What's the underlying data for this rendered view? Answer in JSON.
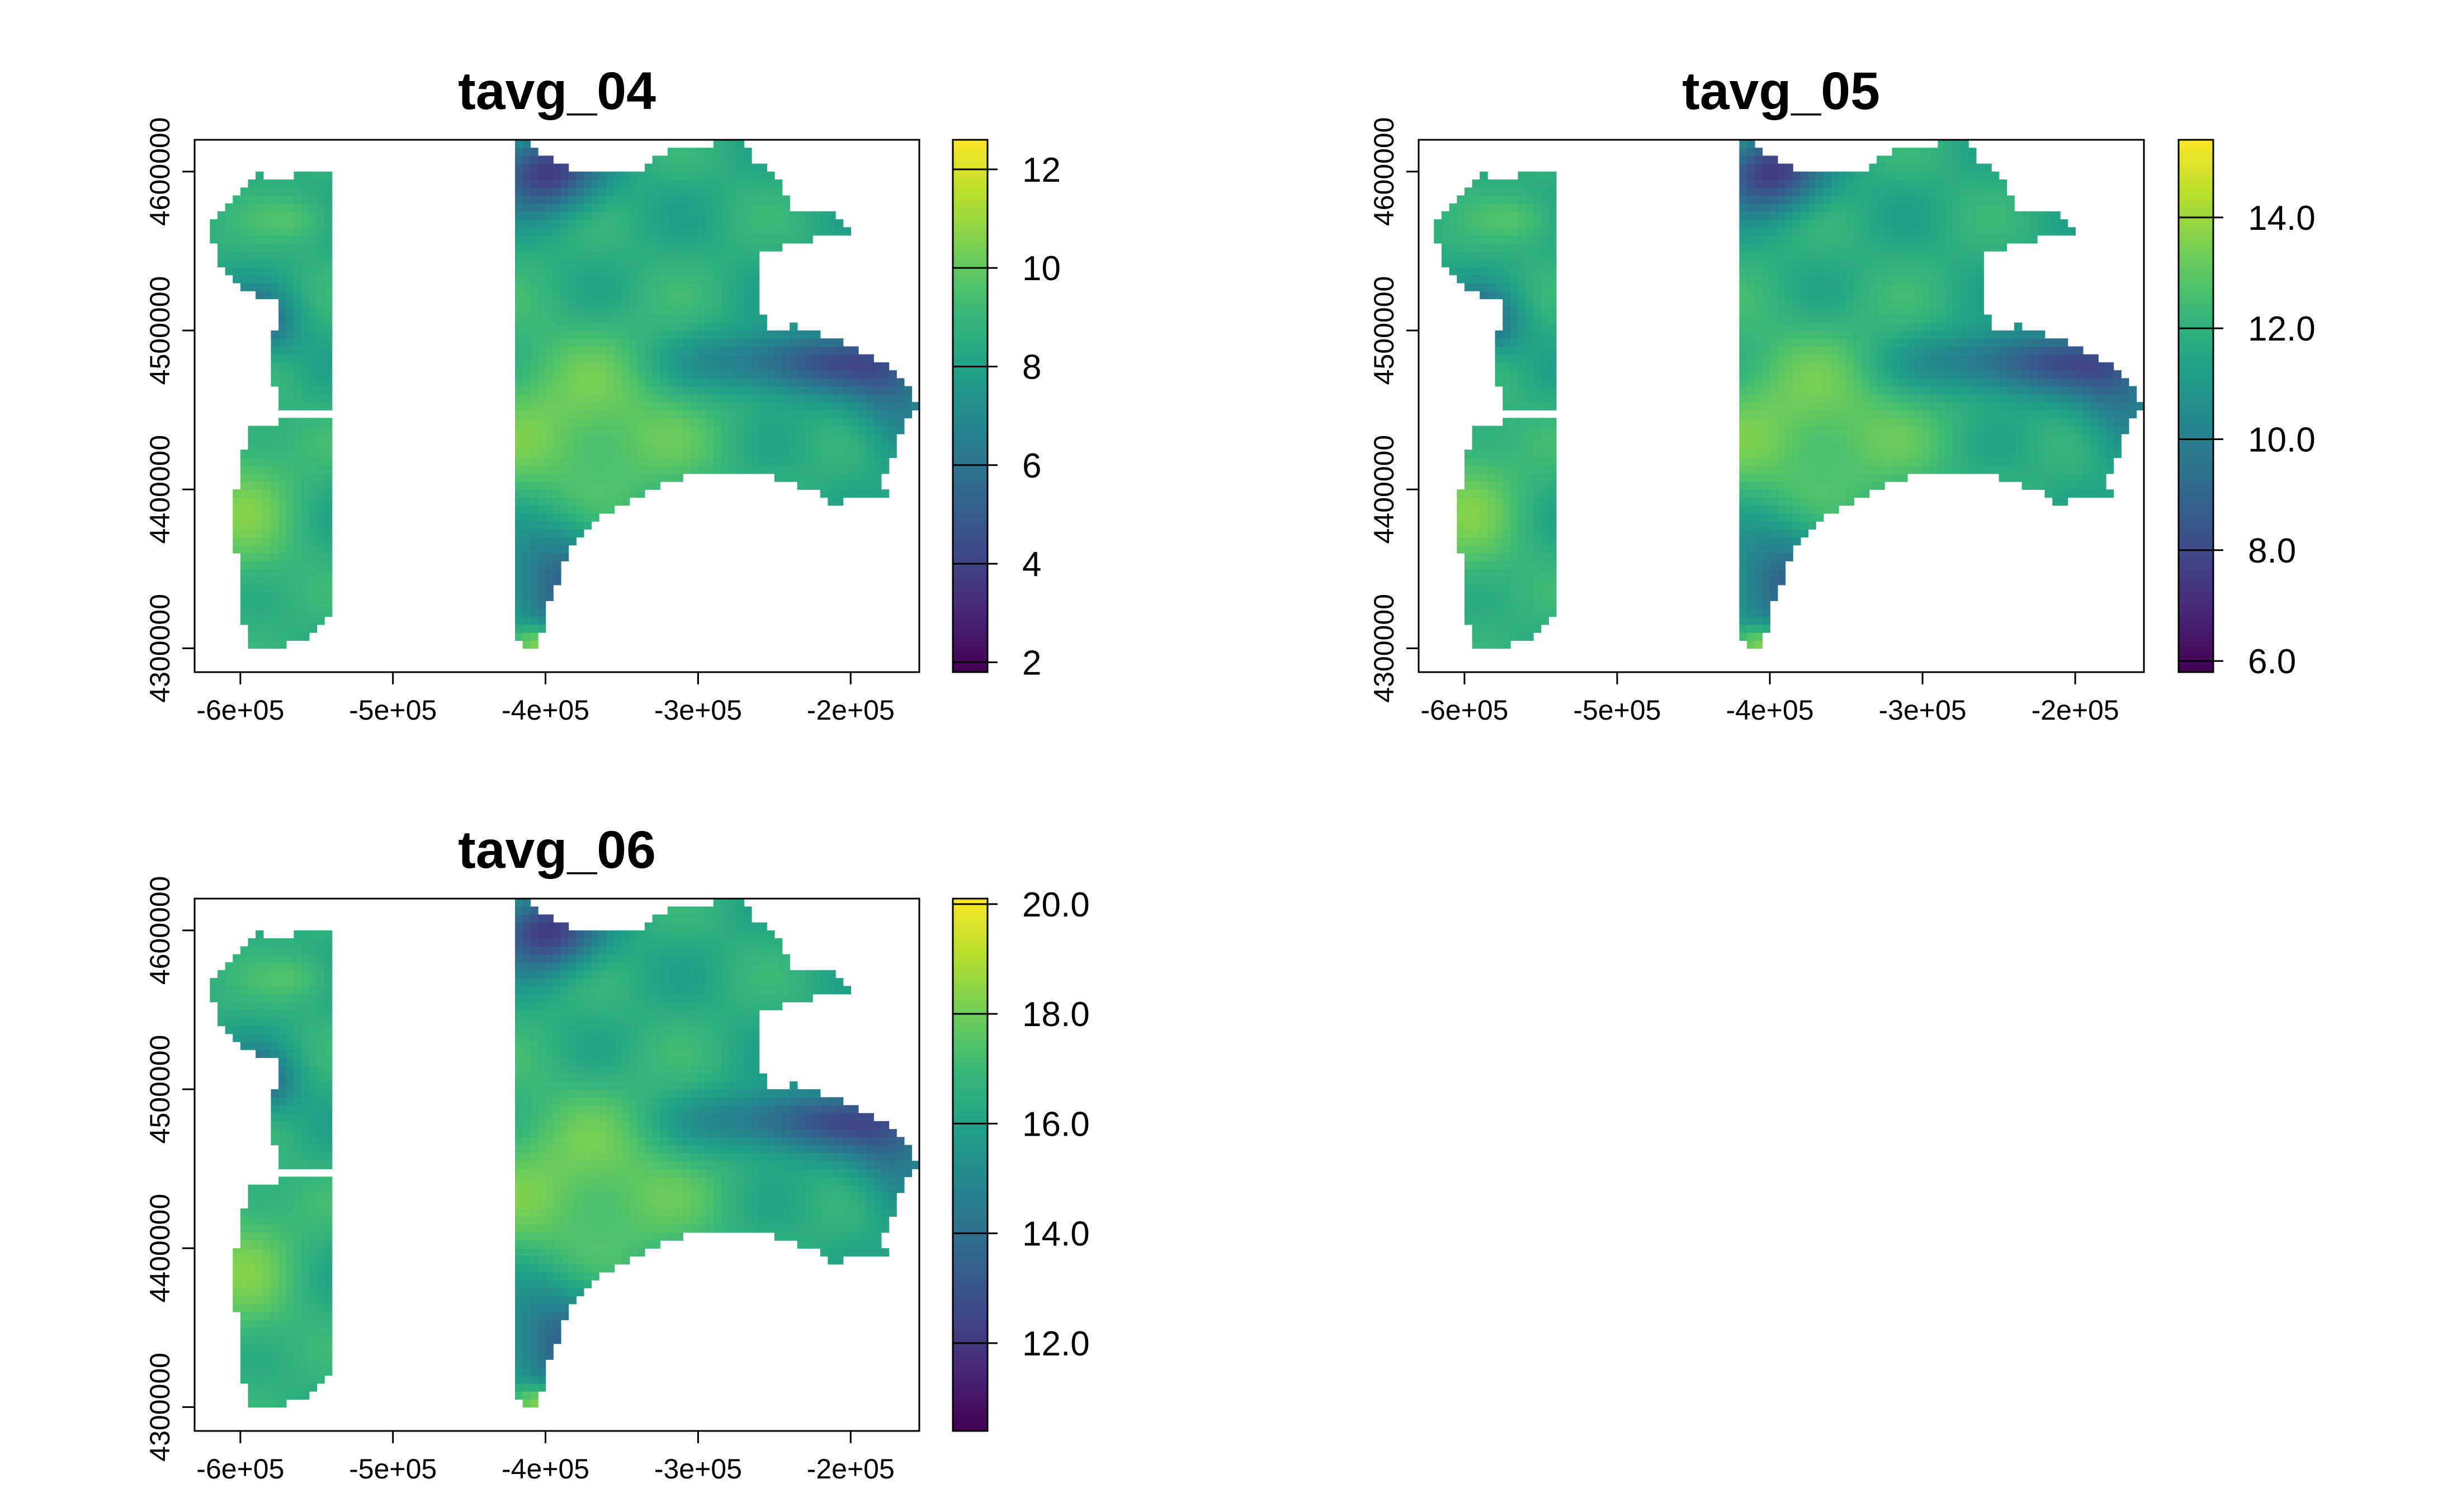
{
  "chart_data": {
    "type": "heatmap",
    "color_scale": "viridis",
    "colors": {
      "viridis_low": "#440154",
      "viridis_mid": "#21918c",
      "viridis_high": "#fde725",
      "axis": "#000000",
      "na": "#ffffff"
    },
    "xlim": [
      -630000,
      -155000
    ],
    "ylim": [
      4285000,
      4620000
    ],
    "x_ticks": [
      -600000,
      -500000,
      -400000,
      -300000,
      -200000
    ],
    "x_tick_labels": [
      "-6e+05",
      "-5e+05",
      "-4e+05",
      "-3e+05",
      "-2e+05"
    ],
    "y_ticks": [
      4300000,
      4400000,
      4500000,
      4600000
    ],
    "y_tick_labels": [
      "4300000",
      "4400000",
      "4500000",
      "4600000"
    ],
    "region_polygons": [
      [
        [
          -590000,
          4600000
        ],
        [
          -570000,
          4593000
        ],
        [
          -565000,
          4600000
        ],
        [
          -540000,
          4602000
        ],
        [
          -540000,
          4520000
        ],
        [
          -590000,
          4522000
        ],
        [
          -615000,
          4540000
        ],
        [
          -620000,
          4570000
        ],
        [
          -600000,
          4585000
        ]
      ],
      [
        [
          -575000,
          4522000
        ],
        [
          -540000,
          4520000
        ],
        [
          -540000,
          4448000
        ],
        [
          -575000,
          4450000
        ],
        [
          -580000,
          4478000
        ]
      ],
      [
        [
          -595000,
          4438000
        ],
        [
          -550000,
          4448000
        ],
        [
          -540000,
          4443000
        ],
        [
          -540000,
          4325000
        ],
        [
          -550000,
          4310000
        ],
        [
          -575000,
          4300000
        ],
        [
          -595000,
          4302000
        ],
        [
          -600000,
          4330000
        ],
        [
          -605000,
          4390000
        ]
      ],
      [
        [
          -420000,
          4622000
        ],
        [
          -380000,
          4600000
        ],
        [
          -340000,
          4600000
        ],
        [
          -320000,
          4613000
        ],
        [
          -270000,
          4620000
        ],
        [
          -262000,
          4605000
        ],
        [
          -250000,
          4600000
        ],
        [
          -240000,
          4577000
        ],
        [
          -210000,
          4573000
        ],
        [
          -200000,
          4562000
        ],
        [
          -240000,
          4555000
        ],
        [
          -258000,
          4548000
        ],
        [
          -260000,
          4525000
        ],
        [
          -255000,
          4500000
        ],
        [
          -235000,
          4503000
        ],
        [
          -210000,
          4495000
        ],
        [
          -190000,
          4485000
        ],
        [
          -175000,
          4477000
        ],
        [
          -160000,
          4465000
        ],
        [
          -155000,
          4450000
        ],
        [
          -165000,
          4440000
        ],
        [
          -170000,
          4425000
        ],
        [
          -180000,
          4405000
        ],
        [
          -175000,
          4395000
        ],
        [
          -195000,
          4395000
        ],
        [
          -210000,
          4390000
        ],
        [
          -225000,
          4400000
        ],
        [
          -250000,
          4408000
        ],
        [
          -280000,
          4410000
        ],
        [
          -300000,
          4410000
        ],
        [
          -330000,
          4400000
        ],
        [
          -360000,
          4385000
        ],
        [
          -385000,
          4360000
        ],
        [
          -395000,
          4335000
        ],
        [
          -400000,
          4320000
        ],
        [
          -405000,
          4300000
        ],
        [
          -410000,
          4296000
        ],
        [
          -415000,
          4303000
        ],
        [
          -420000,
          4305000
        ]
      ]
    ],
    "panels": [
      {
        "title": "tavg_04",
        "legend_range": [
          1.8,
          12.6
        ],
        "legend_ticks": [
          2,
          4,
          6,
          8,
          10,
          12
        ],
        "legend_labels": [
          "2",
          "4",
          "6",
          "8",
          "10",
          "12"
        ],
        "value_range": [
          1.8,
          12.6
        ]
      },
      {
        "title": "tavg_05",
        "legend_range": [
          5.8,
          15.4
        ],
        "legend_ticks": [
          6,
          8,
          10,
          12,
          14
        ],
        "legend_labels": [
          "6.0",
          "8.0",
          "10.0",
          "12.0",
          "14.0"
        ],
        "value_range": [
          5.8,
          15.4
        ]
      },
      {
        "title": "tavg_06",
        "legend_range": [
          10.4,
          20.1
        ],
        "legend_ticks": [
          12,
          14,
          16,
          18,
          20
        ],
        "legend_labels": [
          "12.0",
          "14.0",
          "16.0",
          "18.0",
          "20.0"
        ],
        "value_range": [
          10.4,
          20.1
        ]
      }
    ]
  }
}
